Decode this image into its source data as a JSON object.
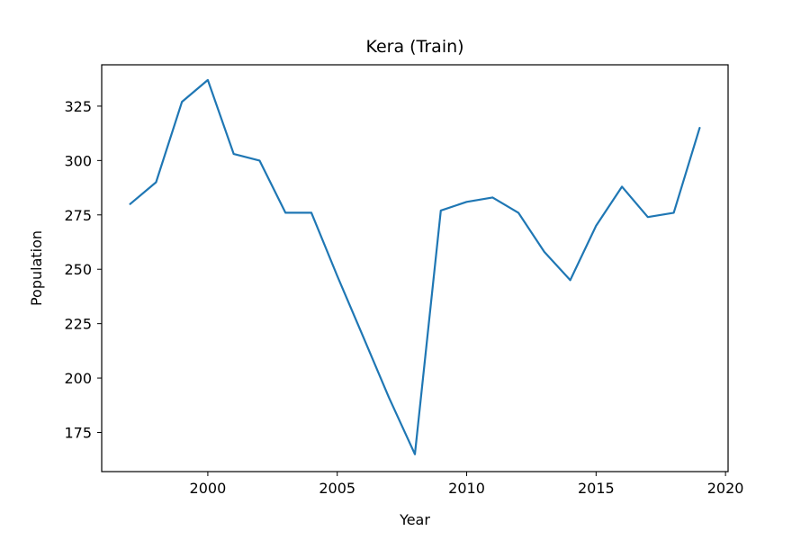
{
  "chart_data": {
    "type": "line",
    "title": "Kera (Train)",
    "xlabel": "Year",
    "ylabel": "Population",
    "xlim": [
      1995.9,
      2020.1
    ],
    "ylim": [
      157,
      344
    ],
    "x_ticks": [
      2000,
      2005,
      2010,
      2015,
      2020
    ],
    "y_ticks": [
      175,
      200,
      225,
      250,
      275,
      300,
      325
    ],
    "grid": false,
    "legend": "none",
    "series": [
      {
        "color": "#1f77b4",
        "x": [
          1997,
          1998,
          1999,
          2000,
          2001,
          2002,
          2003,
          2004,
          2005,
          2006,
          2007,
          2008,
          2009,
          2010,
          2011,
          2012,
          2013,
          2014,
          2015,
          2016,
          2017,
          2018,
          2019
        ],
        "y": [
          280,
          290,
          327,
          337,
          303,
          300,
          276,
          276,
          247,
          219,
          191,
          165,
          277,
          281,
          283,
          276,
          258,
          245,
          270,
          288,
          274,
          276,
          315
        ]
      }
    ]
  }
}
